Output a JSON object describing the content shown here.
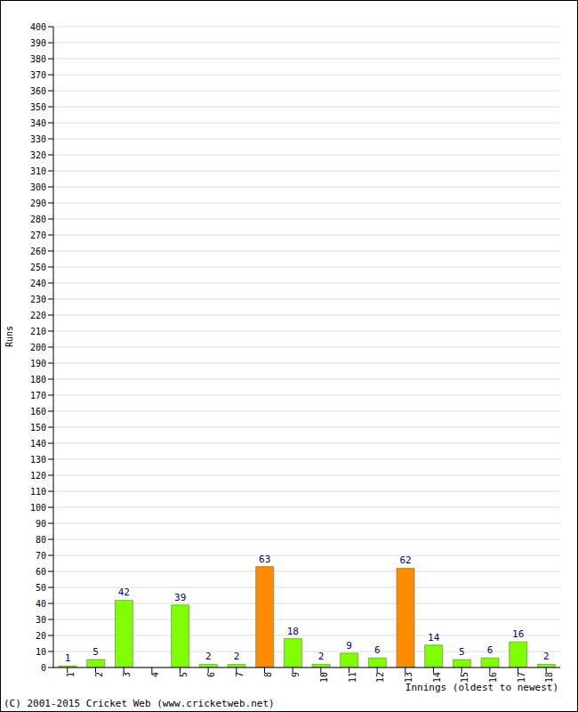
{
  "chart_data": {
    "type": "bar",
    "categories": [
      "1",
      "2",
      "3",
      "4",
      "5",
      "6",
      "7",
      "8",
      "9",
      "10",
      "11",
      "12",
      "13",
      "14",
      "15",
      "16",
      "17",
      "18"
    ],
    "values": [
      1,
      5,
      42,
      0,
      39,
      2,
      2,
      63,
      18,
      2,
      9,
      6,
      62,
      14,
      5,
      6,
      16,
      2
    ],
    "colors": [
      "#80ff00",
      "#80ff00",
      "#80ff00",
      "#80ff00",
      "#80ff00",
      "#80ff00",
      "#80ff00",
      "#ff8c00",
      "#80ff00",
      "#80ff00",
      "#80ff00",
      "#80ff00",
      "#ff8c00",
      "#80ff00",
      "#80ff00",
      "#80ff00",
      "#80ff00",
      "#80ff00"
    ],
    "ylim": [
      0,
      400
    ],
    "yticks": [
      0,
      10,
      20,
      30,
      40,
      50,
      60,
      70,
      80,
      90,
      100,
      110,
      120,
      130,
      140,
      150,
      160,
      170,
      180,
      190,
      200,
      210,
      220,
      230,
      240,
      250,
      260,
      270,
      280,
      290,
      300,
      310,
      320,
      330,
      340,
      350,
      360,
      370,
      380,
      390,
      400
    ],
    "grid": true,
    "data_labels": true,
    "x_label": "Innings (oldest to newest)",
    "y_label": "Runs",
    "annotations": [
      "(C) 2001-2015 Cricket Web (www.cricketweb.net)"
    ]
  }
}
